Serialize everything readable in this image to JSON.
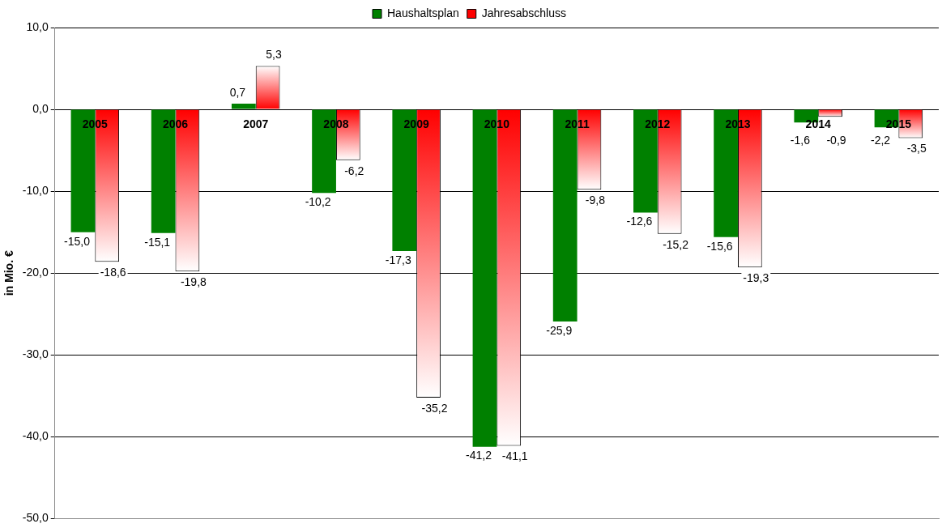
{
  "chart_data": {
    "type": "bar",
    "ylabel": "in Mio. €",
    "categories": [
      "2005",
      "2006",
      "2007",
      "2008",
      "2009",
      "2010",
      "2011",
      "2012",
      "2013",
      "2014",
      "2015"
    ],
    "series": [
      {
        "name": "Haushaltsplan",
        "color": "#008000",
        "values": [
          -15.0,
          -15.1,
          0.7,
          -10.2,
          -17.3,
          -41.2,
          -25.9,
          -12.6,
          -15.6,
          -1.6,
          -2.2
        ],
        "value_labels": [
          "-15,0",
          "-15,1",
          "0,7",
          "-10,2",
          "-17,3",
          "-41,2",
          "-25,9",
          "-12,6",
          "-15,6",
          "-1,6",
          "-2,2"
        ]
      },
      {
        "name": "Jahresabschluss",
        "color": "#ff0000",
        "values": [
          -18.6,
          -19.8,
          5.3,
          -6.2,
          -35.2,
          -41.1,
          -9.8,
          -15.2,
          -19.3,
          -0.9,
          -3.5
        ],
        "value_labels": [
          "-18,6",
          "-19,8",
          "5,3",
          "-6,2",
          "-35,2",
          "-41,1",
          "-9,8",
          "-15,2",
          "-19,3",
          "-0,9",
          "-3,5"
        ]
      }
    ],
    "ylim": [
      -50,
      10
    ],
    "yticks": [
      {
        "value": -50,
        "label": "-50,0"
      },
      {
        "value": -40,
        "label": "-40,0"
      },
      {
        "value": -30,
        "label": "-30,0"
      },
      {
        "value": -20,
        "label": "-20,0"
      },
      {
        "value": -10,
        "label": "-10,0"
      },
      {
        "value": 0,
        "label": "0,0"
      },
      {
        "value": 10,
        "label": "10,0"
      }
    ],
    "grid": "y",
    "legend": "top"
  }
}
